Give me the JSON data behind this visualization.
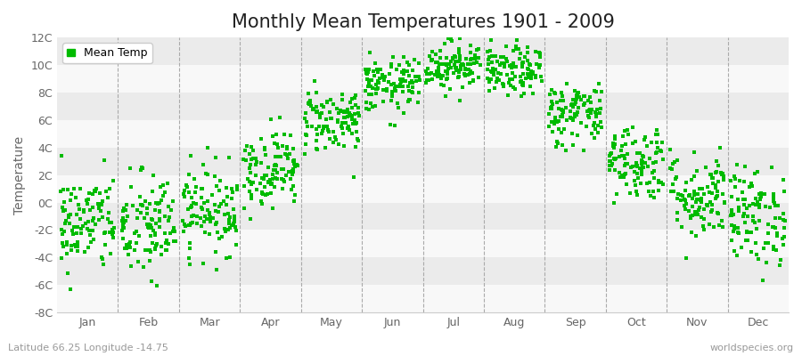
{
  "title": "Monthly Mean Temperatures 1901 - 2009",
  "ylabel": "Temperature",
  "subtitle_left": "Latitude 66.25 Longitude -14.75",
  "subtitle_right": "worldspecies.org",
  "legend_label": "Mean Temp",
  "months": [
    "Jan",
    "Feb",
    "Mar",
    "Apr",
    "May",
    "Jun",
    "Jul",
    "Aug",
    "Sep",
    "Oct",
    "Nov",
    "Dec"
  ],
  "month_means": [
    -1.5,
    -1.8,
    -0.5,
    2.5,
    6.0,
    8.5,
    10.0,
    9.5,
    6.5,
    3.0,
    0.5,
    -1.0
  ],
  "month_stds": [
    1.8,
    2.0,
    1.6,
    1.4,
    1.2,
    1.0,
    0.9,
    0.9,
    1.2,
    1.4,
    1.6,
    1.8
  ],
  "n_years": 109,
  "ylim": [
    -8,
    12
  ],
  "yticks": [
    -8,
    -6,
    -4,
    -2,
    0,
    2,
    4,
    6,
    8,
    10,
    12
  ],
  "ytick_labels": [
    "-8C",
    "-6C",
    "-4C",
    "-2C",
    "0C",
    "2C",
    "4C",
    "6C",
    "8C",
    "10C",
    "12C"
  ],
  "background_color": "#ffffff",
  "plot_bg_light": "#ebebeb",
  "plot_bg_dark": "#f8f8f8",
  "marker_color": "#00bb00",
  "marker_size": 3.5,
  "dashed_line_color": "#aaaaaa",
  "title_fontsize": 15,
  "axis_label_fontsize": 10,
  "tick_fontsize": 9,
  "legend_fontsize": 9,
  "seed": 42
}
